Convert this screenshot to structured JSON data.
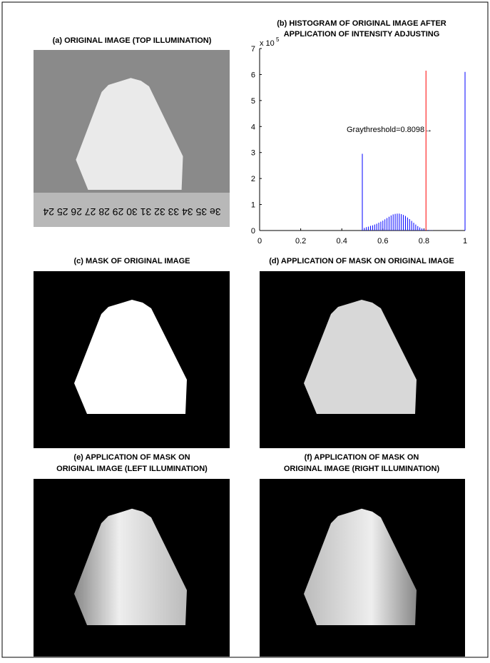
{
  "panels": [
    {
      "title": "(a) ORIGINAL IMAGE (TOP ILLUMINATION)",
      "ruler_text": "3e 35 34 33 32 31 30 29 28 27 26 25 24"
    },
    {
      "title": "(c) MASK OF ORIGINAL IMAGE"
    },
    {
      "title": "(d) APPLICATION OF MASK ON ORIGINAL IMAGE"
    },
    {
      "title_lines": [
        "(e) APPLICATION OF MASK ON",
        "ORIGINAL IMAGE (LEFT ILLUMINATION)"
      ]
    },
    {
      "title_lines": [
        "(f) APPLICATION OF MASK ON",
        "ORIGINAL IMAGE (RIGHT ILLUMINATION)"
      ]
    }
  ],
  "chart_data": {
    "type": "bar",
    "title_lines": [
      "(b) HISTOGRAM OF ORIGINAL IMAGE AFTER",
      "APPLICATION OF INTENSITY ADJUSTING"
    ],
    "y_multiplier": "x 10",
    "y_exponent": "5",
    "annotation": "Graythreshold=0.8098→",
    "series": [
      {
        "color": "#0000ff",
        "x": [
          0.5,
          0.51,
          0.52,
          0.53,
          0.54,
          0.55,
          0.56,
          0.57,
          0.58,
          0.59,
          0.6,
          0.61,
          0.62,
          0.63,
          0.64,
          0.65,
          0.66,
          0.67,
          0.68,
          0.69,
          0.7,
          0.71,
          0.72,
          0.73,
          0.74,
          0.75,
          0.76,
          0.77,
          0.78,
          0.79,
          0.8,
          0.81,
          0.82,
          0.83,
          0.84,
          1
        ],
        "values": [
          2.95,
          0.1,
          0.13,
          0.15,
          0.18,
          0.2,
          0.23,
          0.26,
          0.3,
          0.34,
          0.38,
          0.43,
          0.48,
          0.53,
          0.58,
          0.62,
          0.64,
          0.65,
          0.65,
          0.63,
          0.6,
          0.56,
          0.5,
          0.44,
          0.37,
          0.3,
          0.23,
          0.17,
          0.12,
          0.08,
          0.05,
          0.03,
          0.02,
          0.01,
          0.01,
          6.1
        ]
      },
      {
        "color": "#ff0000",
        "x": [
          0.8098
        ],
        "values": [
          6.15
        ]
      }
    ],
    "xlim": [
      0,
      1
    ],
    "xticks": [
      0,
      0.2,
      0.4,
      0.6,
      0.8,
      1
    ],
    "ylim": [
      0,
      7
    ],
    "yticks": [
      0,
      1,
      2,
      3,
      4,
      5,
      6,
      7
    ]
  }
}
